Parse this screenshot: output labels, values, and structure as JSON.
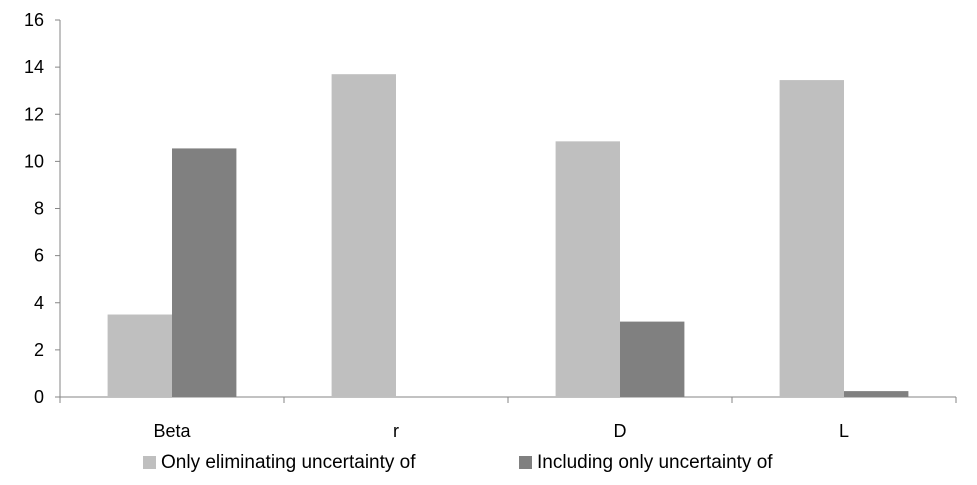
{
  "chart_data": {
    "type": "bar",
    "title": "",
    "xlabel": "",
    "ylabel": "",
    "categories": [
      "Beta",
      "r",
      "D",
      "L"
    ],
    "ylim": [
      0,
      16
    ],
    "yticks": [
      0,
      2,
      4,
      6,
      8,
      10,
      12,
      14,
      16
    ],
    "grid": false,
    "legend_position": "bottom",
    "series": [
      {
        "name": "Only eliminating uncertainty of",
        "values": [
          3.5,
          13.7,
          10.85,
          13.45
        ],
        "color": "#bfbfbf"
      },
      {
        "name": "Including only uncertainty of",
        "values": [
          10.55,
          0,
          3.2,
          0.25
        ],
        "color": "#808080"
      }
    ]
  }
}
